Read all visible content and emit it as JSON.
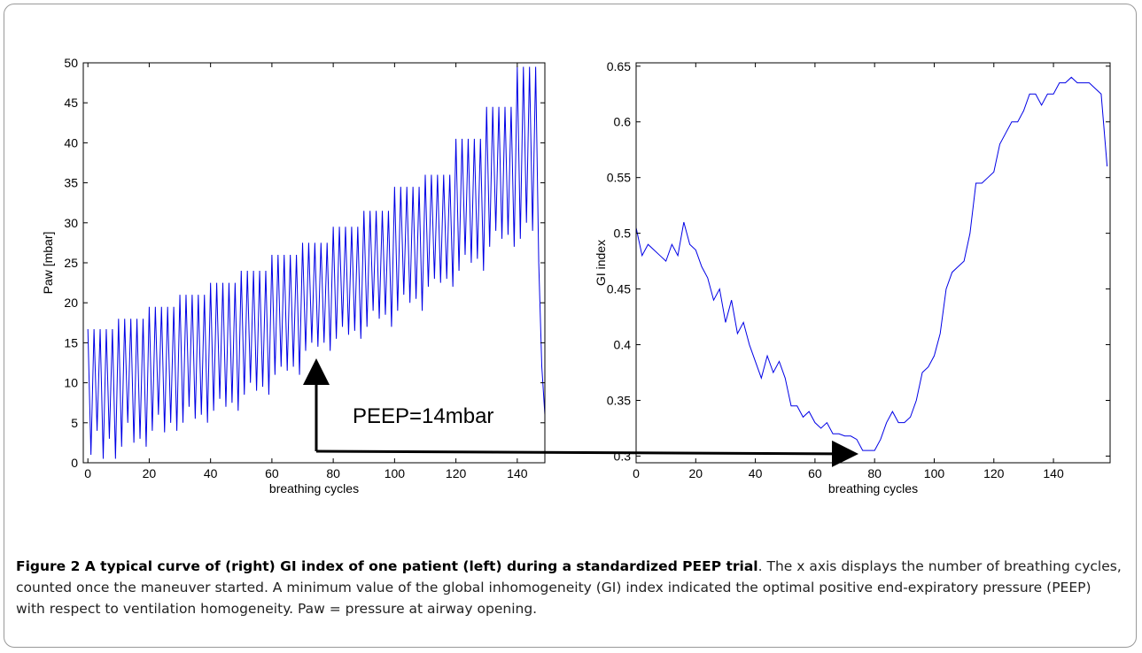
{
  "chart_data": [
    {
      "type": "line",
      "xlabel": "breathing cycles",
      "ylabel": "Paw [mbar]",
      "annotation": "PEEP=14mbar",
      "xlim": [
        -1.5,
        149
      ],
      "xticks": [
        0,
        20,
        40,
        60,
        80,
        100,
        120,
        140
      ],
      "ylim": [
        0,
        50
      ],
      "yticks": [
        0,
        5,
        10,
        15,
        20,
        25,
        30,
        35,
        40,
        45,
        50
      ],
      "x": [
        0,
        1,
        2,
        3,
        4,
        5,
        6,
        7,
        8,
        9,
        10,
        11,
        12,
        13,
        14,
        15,
        16,
        17,
        18,
        19,
        20,
        21,
        22,
        23,
        24,
        25,
        26,
        27,
        28,
        29,
        30,
        31,
        32,
        33,
        34,
        35,
        36,
        37,
        38,
        39,
        40,
        41,
        42,
        43,
        44,
        45,
        46,
        47,
        48,
        49,
        50,
        51,
        52,
        53,
        54,
        55,
        56,
        57,
        58,
        59,
        60,
        61,
        62,
        63,
        64,
        65,
        66,
        67,
        68,
        69,
        70,
        71,
        72,
        73,
        74,
        75,
        76,
        77,
        78,
        79,
        80,
        81,
        82,
        83,
        84,
        85,
        86,
        87,
        88,
        89,
        90,
        91,
        92,
        93,
        94,
        95,
        96,
        97,
        98,
        99,
        100,
        101,
        102,
        103,
        104,
        105,
        106,
        107,
        108,
        109,
        110,
        111,
        112,
        113,
        114,
        115,
        116,
        117,
        118,
        119,
        120,
        121,
        122,
        123,
        124,
        125,
        126,
        127,
        128,
        129,
        130,
        131,
        132,
        133,
        134,
        135,
        136,
        137,
        138,
        139,
        140,
        141,
        142,
        143,
        144,
        145,
        146,
        147,
        148,
        149
      ],
      "series": [
        {
          "color": "#0000e6",
          "values": [
            16.7,
            1,
            16.7,
            4,
            16.7,
            0.5,
            16.7,
            3,
            16.7,
            0.5,
            18,
            2,
            18,
            5,
            18,
            2.5,
            18,
            3,
            18,
            2,
            19.5,
            4,
            19.5,
            6,
            19.5,
            3.8,
            19.5,
            5,
            19.5,
            4,
            21,
            5,
            21,
            7,
            21,
            5.5,
            21,
            6,
            21,
            5,
            22.5,
            6.5,
            22.5,
            8,
            22.5,
            7,
            22.5,
            7.5,
            22.5,
            6.5,
            24,
            8.5,
            24,
            10,
            24,
            9,
            24,
            9.5,
            24,
            8.5,
            26,
            11,
            26,
            12,
            26,
            11.5,
            26,
            12,
            26,
            11,
            27.5,
            14,
            27.5,
            15,
            27.5,
            14.5,
            27.5,
            15,
            27.5,
            14,
            29.5,
            15.5,
            29.5,
            17,
            29.5,
            16,
            29.5,
            16.5,
            29.5,
            15.5,
            31.5,
            17,
            31.5,
            19,
            31.5,
            18,
            31.5,
            18.5,
            31.5,
            17,
            34.5,
            19,
            34.5,
            21,
            34.5,
            20,
            34.5,
            20.5,
            34.5,
            19,
            36,
            22,
            36,
            23,
            36,
            22.5,
            36,
            23,
            36,
            22,
            40.5,
            24,
            40.5,
            26,
            40.5,
            25,
            40.5,
            25.5,
            40.5,
            24,
            44.5,
            27,
            44.5,
            29,
            44.5,
            28,
            44.5,
            28.5,
            44.5,
            27,
            49.5,
            28,
            49.5,
            30,
            49.5,
            29,
            49.5,
            25,
            12,
            6
          ]
        }
      ]
    },
    {
      "type": "line",
      "xlabel": "breathing cycles",
      "ylabel": "GI index",
      "xlim": [
        0,
        159
      ],
      "xticks": [
        0,
        20,
        40,
        60,
        80,
        100,
        120,
        140
      ],
      "ylim": [
        0.294,
        0.653
      ],
      "yticks": [
        0.3,
        0.35,
        0.4,
        0.45,
        0.5,
        0.55,
        0.6,
        0.65
      ],
      "x": [
        0,
        2,
        4,
        6,
        8,
        10,
        12,
        14,
        16,
        18,
        20,
        22,
        24,
        26,
        28,
        30,
        32,
        34,
        36,
        38,
        40,
        42,
        44,
        46,
        48,
        50,
        52,
        54,
        56,
        58,
        60,
        62,
        64,
        66,
        68,
        70,
        72,
        74,
        76,
        78,
        80,
        82,
        84,
        86,
        88,
        90,
        92,
        94,
        96,
        98,
        100,
        102,
        104,
        106,
        108,
        110,
        112,
        114,
        116,
        118,
        120,
        122,
        124,
        126,
        128,
        130,
        132,
        134,
        136,
        138,
        140,
        142,
        144,
        146,
        148,
        150,
        152,
        154,
        156,
        158
      ],
      "series": [
        {
          "color": "#0000e6",
          "values": [
            0.505,
            0.48,
            0.49,
            0.485,
            0.48,
            0.475,
            0.49,
            0.48,
            0.51,
            0.49,
            0.485,
            0.47,
            0.46,
            0.44,
            0.45,
            0.42,
            0.44,
            0.41,
            0.42,
            0.4,
            0.385,
            0.37,
            0.39,
            0.375,
            0.385,
            0.37,
            0.345,
            0.345,
            0.335,
            0.34,
            0.33,
            0.325,
            0.33,
            0.32,
            0.32,
            0.318,
            0.318,
            0.315,
            0.305,
            0.305,
            0.305,
            0.315,
            0.33,
            0.34,
            0.33,
            0.33,
            0.335,
            0.35,
            0.375,
            0.38,
            0.39,
            0.41,
            0.45,
            0.465,
            0.47,
            0.475,
            0.5,
            0.545,
            0.545,
            0.55,
            0.555,
            0.58,
            0.59,
            0.6,
            0.6,
            0.61,
            0.625,
            0.625,
            0.615,
            0.625,
            0.625,
            0.635,
            0.635,
            0.64,
            0.635,
            0.635,
            0.635,
            0.63,
            0.625,
            0.56
          ]
        }
      ]
    }
  ],
  "caption": {
    "bold": "Figure 2 A typical curve of (right) GI index of one patient (left) during a standardized PEEP trial",
    "text": ". The x axis displays the number of breathing cycles, counted once the maneuver started. A minimum value of the global inhomogeneity (GI) index indicated the optimal positive end-expiratory pressure (PEEP) with respect to ventilation homogeneity. Paw = pressure at airway opening."
  }
}
